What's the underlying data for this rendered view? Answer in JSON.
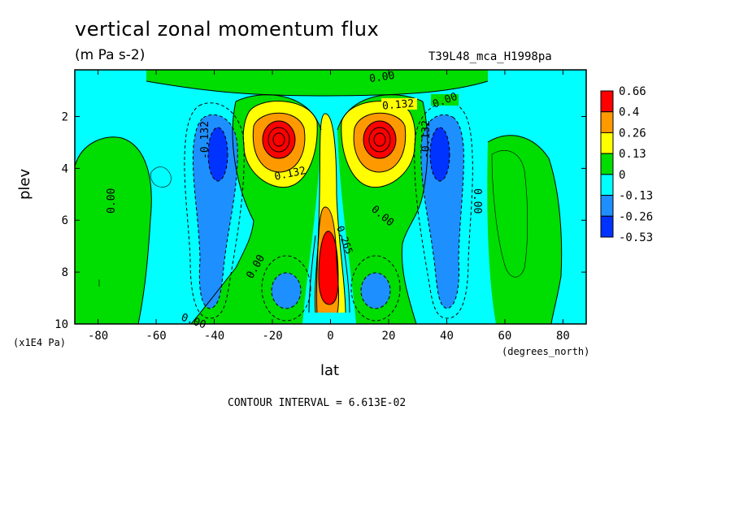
{
  "chart_data": {
    "type": "heatmap",
    "title": "vertical zonal momentum flux",
    "units": "(m Pa s-2)",
    "run_label": "T39L48_mca_H1998pa",
    "xlabel": "lat",
    "x_unit_label": "(degrees_north)",
    "ylabel": "plev",
    "y_unit_label": "(x1E4 Pa)",
    "xlim": [
      -88,
      88
    ],
    "ylim": [
      10,
      0.2
    ],
    "x_ticks": [
      -80,
      -60,
      -40,
      -20,
      0,
      20,
      40,
      60,
      80
    ],
    "x_tick_labels": [
      "-80",
      "-60",
      "-40",
      "-20",
      "0",
      "20",
      "40",
      "60",
      "80"
    ],
    "y_ticks": [
      2,
      4,
      6,
      8,
      10
    ],
    "y_tick_labels": [
      "2",
      "4",
      "6",
      "8",
      "10"
    ],
    "contour_interval_text": "CONTOUR INTERVAL = 6.613E-02",
    "contour_labels": [
      "0.00",
      "0.132",
      "-0.132",
      "0.265"
    ],
    "legend": {
      "placement": "right",
      "labels": [
        "0.66",
        "0.4",
        "0.26",
        "0.13",
        "0",
        "-0.13",
        "-0.26",
        "-0.53"
      ],
      "colors": [
        "#ff0000",
        "#ff9900",
        "#ffff00",
        "#00dd00",
        "#00ffff",
        "#1e8fff",
        "#0033ff"
      ]
    },
    "features": [
      {
        "level": 1,
        "peak_lat": -18,
        "peak_plev": 2.8,
        "value": 0.66
      },
      {
        "level": 1,
        "peak_lat": 18,
        "peak_plev": 2.8,
        "value": 0.66
      },
      {
        "level": 1,
        "peak_lat": 0,
        "peak_plev": 8.0,
        "value": 0.66
      },
      {
        "level": -1,
        "peak_lat": -42,
        "peak_plev": 3.5,
        "value": -0.53
      },
      {
        "level": -1,
        "peak_lat": 38,
        "peak_plev": 3.5,
        "value": -0.53
      }
    ]
  },
  "colors": {
    "pos3": "#ff0000",
    "pos2": "#ff9900",
    "pos1": "#ffff00",
    "pos0": "#00dd00",
    "neg0": "#00ffff",
    "neg1": "#1e8fff",
    "neg2": "#0033ff"
  }
}
